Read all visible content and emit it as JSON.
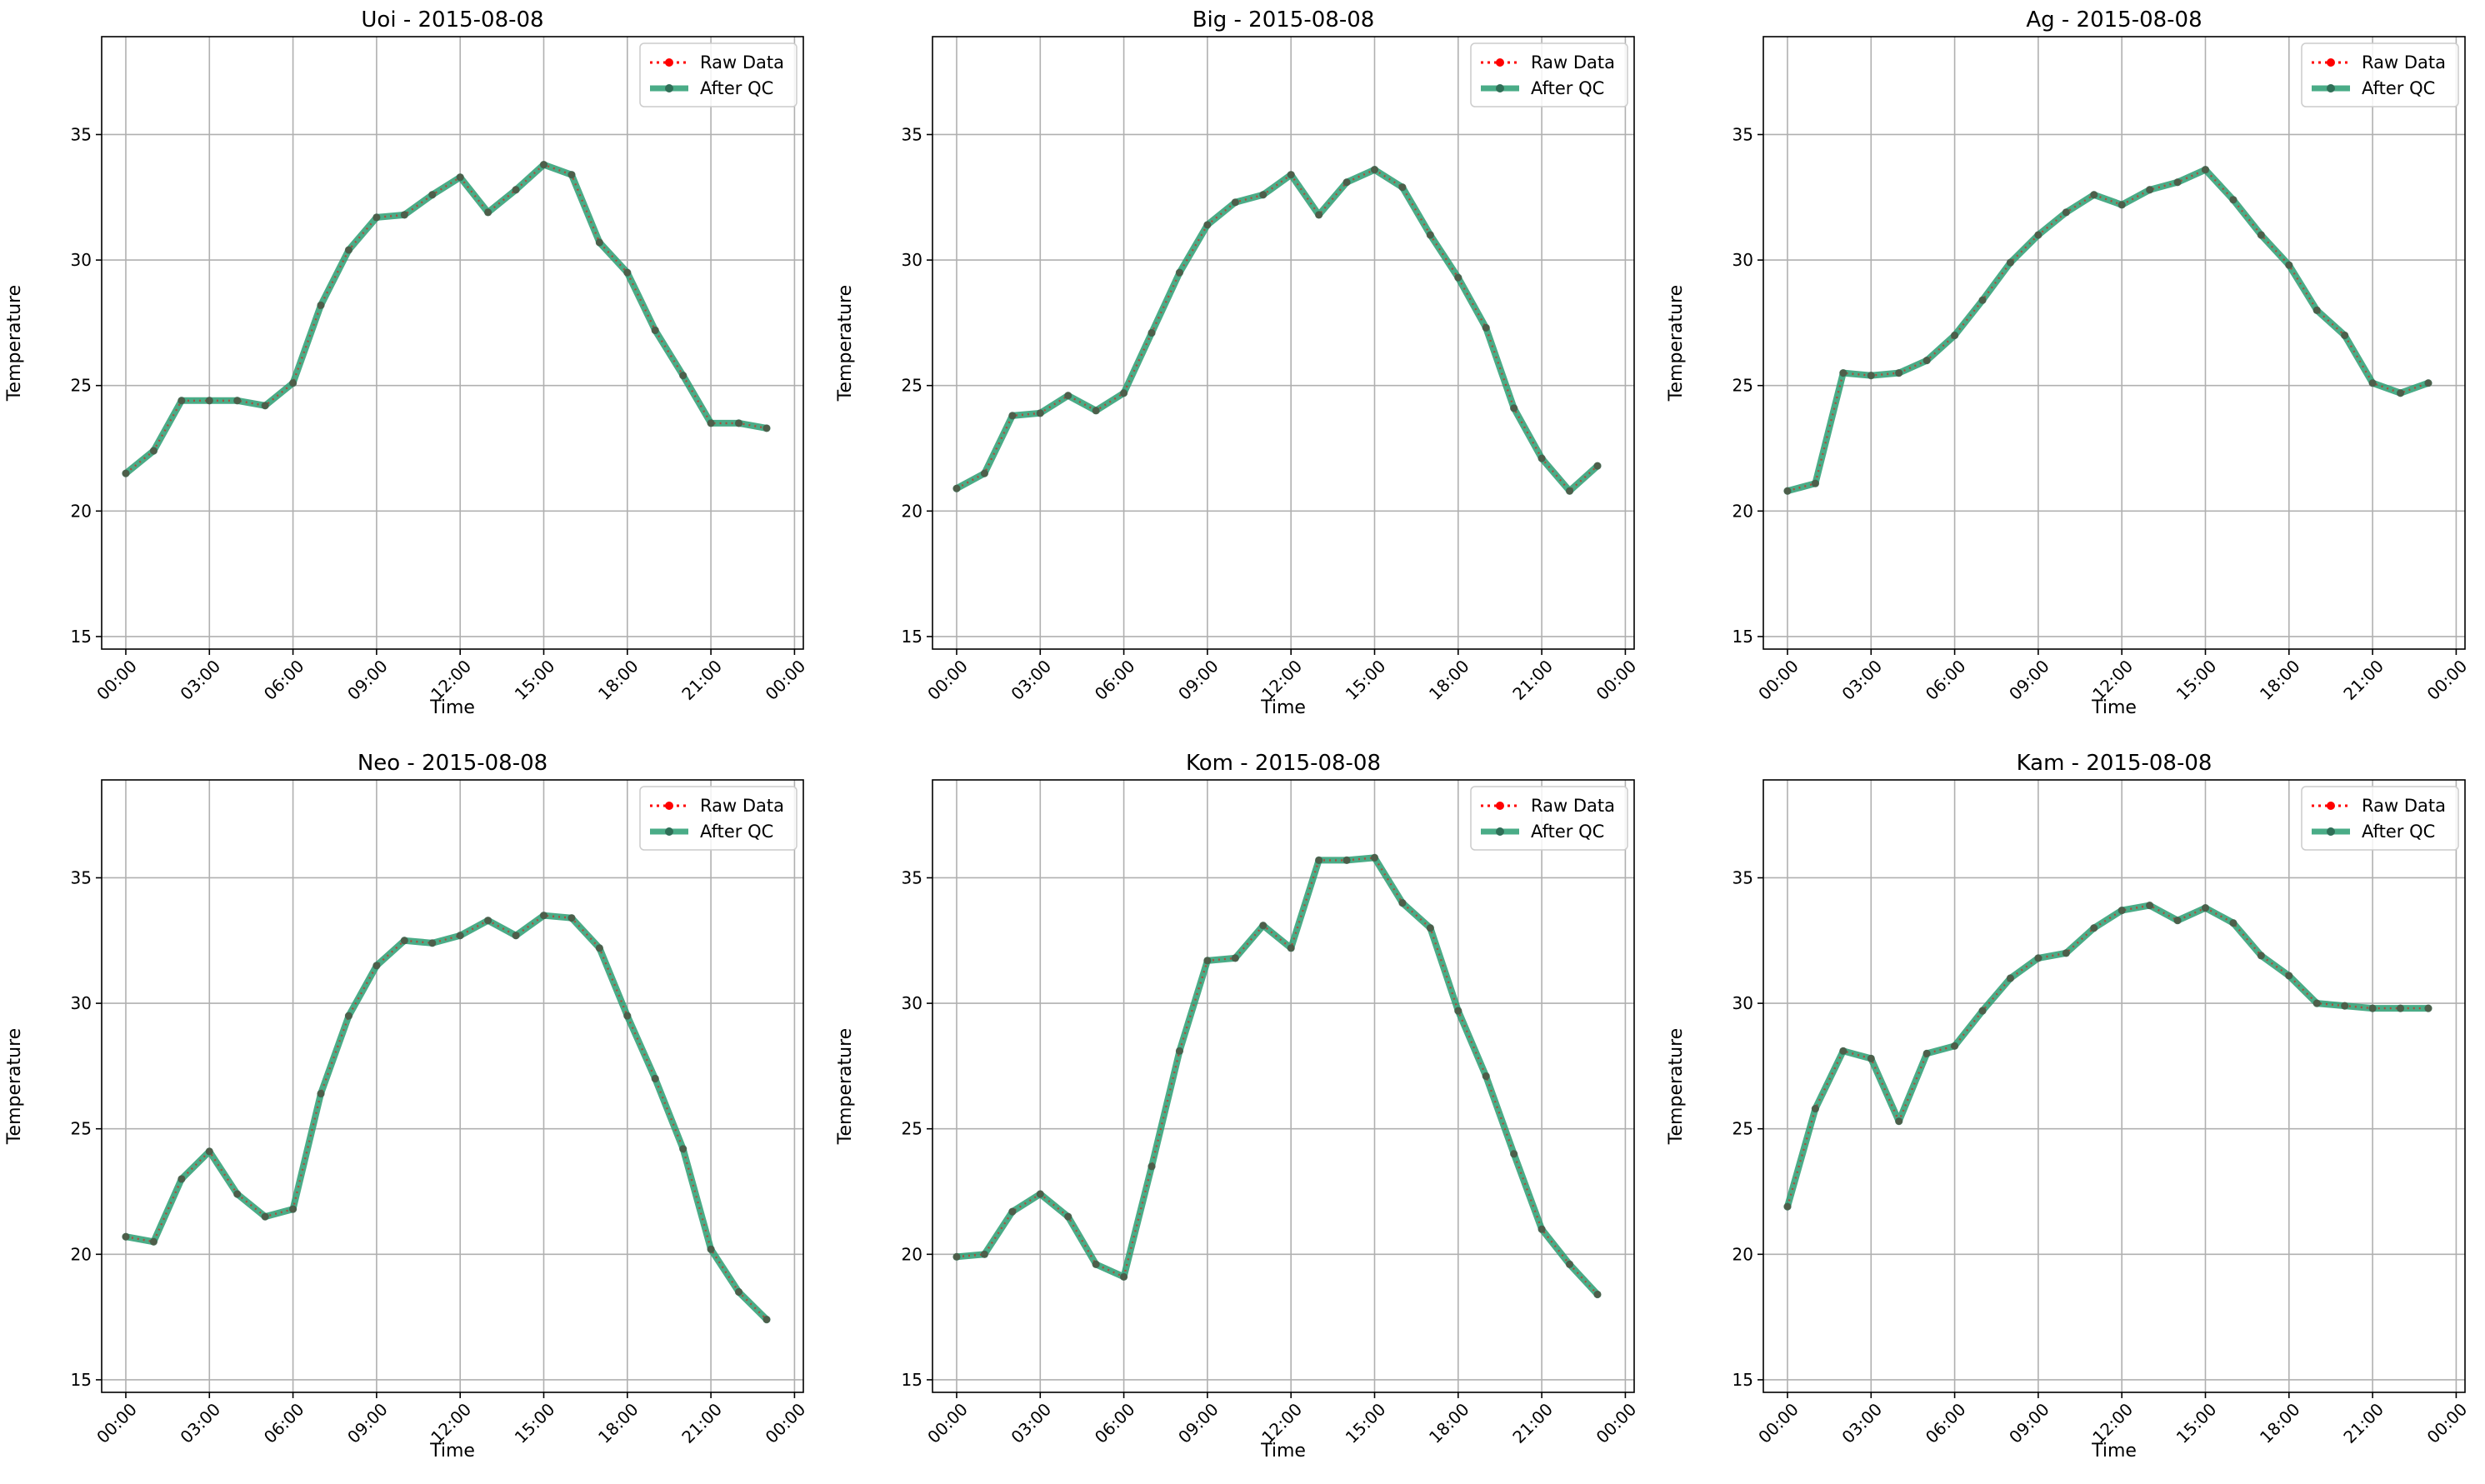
{
  "chart_data": [
    {
      "type": "line",
      "title": "Uoi - 2015-08-08",
      "xlabel": "Time",
      "ylabel": "Temperature",
      "ylim": [
        14.5,
        38.9
      ],
      "xlim": [
        "23:08",
        "00:19"
      ],
      "x_ticks": [
        "00:00",
        "03:00",
        "06:00",
        "09:00",
        "12:00",
        "15:00",
        "18:00",
        "21:00",
        "00:00"
      ],
      "y_ticks": [
        15,
        20,
        25,
        30,
        35
      ],
      "grid": true,
      "legend": "top-right",
      "x": [
        "00:00",
        "01:00",
        "02:00",
        "03:00",
        "04:00",
        "05:00",
        "06:00",
        "07:00",
        "08:00",
        "09:00",
        "10:00",
        "11:00",
        "12:00",
        "13:00",
        "14:00",
        "15:00",
        "16:00",
        "17:00",
        "18:00",
        "19:00",
        "20:00",
        "21:00",
        "22:00",
        "23:00"
      ],
      "series": [
        {
          "name": "Raw Data",
          "color": "#ff0000",
          "values": [
            21.5,
            22.4,
            24.4,
            24.4,
            24.4,
            24.2,
            25.1,
            28.2,
            30.4,
            31.7,
            31.8,
            32.6,
            33.3,
            31.9,
            32.8,
            33.8,
            33.4,
            30.7,
            29.5,
            27.2,
            25.4,
            23.5,
            23.5,
            23.3
          ]
        },
        {
          "name": "After QC",
          "color": "#2a9d72",
          "values": [
            21.5,
            22.4,
            24.4,
            24.4,
            24.4,
            24.2,
            25.1,
            28.2,
            30.4,
            31.7,
            31.8,
            32.6,
            33.3,
            31.9,
            32.8,
            33.8,
            33.4,
            30.7,
            29.5,
            27.2,
            25.4,
            23.5,
            23.5,
            23.3
          ]
        }
      ]
    },
    {
      "type": "line",
      "title": "Big - 2015-08-08",
      "xlabel": "Time",
      "ylabel": "Temperature",
      "ylim": [
        14.5,
        38.9
      ],
      "xlim": [
        "23:08",
        "00:19"
      ],
      "x_ticks": [
        "00:00",
        "03:00",
        "06:00",
        "09:00",
        "12:00",
        "15:00",
        "18:00",
        "21:00",
        "00:00"
      ],
      "y_ticks": [
        15,
        20,
        25,
        30,
        35
      ],
      "grid": true,
      "legend": "top-right",
      "x": [
        "00:00",
        "01:00",
        "02:00",
        "03:00",
        "04:00",
        "05:00",
        "06:00",
        "07:00",
        "08:00",
        "09:00",
        "10:00",
        "11:00",
        "12:00",
        "13:00",
        "14:00",
        "15:00",
        "16:00",
        "17:00",
        "18:00",
        "19:00",
        "20:00",
        "21:00",
        "22:00",
        "23:00"
      ],
      "series": [
        {
          "name": "Raw Data",
          "color": "#ff0000",
          "values": [
            20.9,
            21.5,
            23.8,
            23.9,
            24.6,
            24.0,
            24.7,
            27.1,
            29.5,
            31.4,
            32.3,
            32.6,
            33.4,
            31.8,
            33.1,
            33.6,
            32.9,
            31.0,
            29.3,
            27.3,
            24.1,
            22.1,
            20.8,
            21.8
          ]
        },
        {
          "name": "After QC",
          "color": "#2a9d72",
          "values": [
            20.9,
            21.5,
            23.8,
            23.9,
            24.6,
            24.0,
            24.7,
            27.1,
            29.5,
            31.4,
            32.3,
            32.6,
            33.4,
            31.8,
            33.1,
            33.6,
            32.9,
            31.0,
            29.3,
            27.3,
            24.1,
            22.1,
            20.8,
            21.8
          ]
        }
      ]
    },
    {
      "type": "line",
      "title": "Ag - 2015-08-08",
      "xlabel": "Time",
      "ylabel": "Temperature",
      "ylim": [
        14.5,
        38.9
      ],
      "xlim": [
        "23:08",
        "00:19"
      ],
      "x_ticks": [
        "00:00",
        "03:00",
        "06:00",
        "09:00",
        "12:00",
        "15:00",
        "18:00",
        "21:00",
        "00:00"
      ],
      "y_ticks": [
        15,
        20,
        25,
        30,
        35
      ],
      "grid": true,
      "legend": "top-right",
      "x": [
        "00:00",
        "01:00",
        "02:00",
        "03:00",
        "04:00",
        "05:00",
        "06:00",
        "07:00",
        "08:00",
        "09:00",
        "10:00",
        "11:00",
        "12:00",
        "13:00",
        "14:00",
        "15:00",
        "16:00",
        "17:00",
        "18:00",
        "19:00",
        "20:00",
        "21:00",
        "22:00",
        "23:00"
      ],
      "series": [
        {
          "name": "Raw Data",
          "color": "#ff0000",
          "values": [
            20.8,
            21.1,
            25.5,
            25.4,
            25.5,
            26.0,
            27.0,
            28.4,
            29.9,
            31.0,
            31.9,
            32.6,
            32.2,
            32.8,
            33.1,
            33.6,
            32.4,
            31.0,
            29.8,
            28.0,
            27.0,
            25.1,
            24.7,
            25.1
          ]
        },
        {
          "name": "After QC",
          "color": "#2a9d72",
          "values": [
            20.8,
            21.1,
            25.5,
            25.4,
            25.5,
            26.0,
            27.0,
            28.4,
            29.9,
            31.0,
            31.9,
            32.6,
            32.2,
            32.8,
            33.1,
            33.6,
            32.4,
            31.0,
            29.8,
            28.0,
            27.0,
            25.1,
            24.7,
            25.1
          ]
        }
      ]
    },
    {
      "type": "line",
      "title": "Neo - 2015-08-08",
      "xlabel": "Time",
      "ylabel": "Temperature",
      "ylim": [
        14.5,
        38.9
      ],
      "xlim": [
        "23:08",
        "00:19"
      ],
      "x_ticks": [
        "00:00",
        "03:00",
        "06:00",
        "09:00",
        "12:00",
        "15:00",
        "18:00",
        "21:00",
        "00:00"
      ],
      "y_ticks": [
        15,
        20,
        25,
        30,
        35
      ],
      "grid": true,
      "legend": "top-right",
      "x": [
        "00:00",
        "01:00",
        "02:00",
        "03:00",
        "04:00",
        "05:00",
        "06:00",
        "07:00",
        "08:00",
        "09:00",
        "10:00",
        "11:00",
        "12:00",
        "13:00",
        "14:00",
        "15:00",
        "16:00",
        "17:00",
        "18:00",
        "19:00",
        "20:00",
        "21:00",
        "22:00",
        "23:00"
      ],
      "series": [
        {
          "name": "Raw Data",
          "color": "#ff0000",
          "values": [
            20.7,
            20.5,
            23.0,
            24.1,
            22.4,
            21.5,
            21.8,
            26.4,
            29.5,
            31.5,
            32.5,
            32.4,
            32.7,
            33.3,
            32.7,
            33.5,
            33.4,
            32.2,
            29.5,
            27.0,
            24.2,
            20.2,
            18.5,
            17.4
          ]
        },
        {
          "name": "After QC",
          "color": "#2a9d72",
          "values": [
            20.7,
            20.5,
            23.0,
            24.1,
            22.4,
            21.5,
            21.8,
            26.4,
            29.5,
            31.5,
            32.5,
            32.4,
            32.7,
            33.3,
            32.7,
            33.5,
            33.4,
            32.2,
            29.5,
            27.0,
            24.2,
            20.2,
            18.5,
            17.4
          ]
        }
      ]
    },
    {
      "type": "line",
      "title": "Kom - 2015-08-08",
      "xlabel": "Time",
      "ylabel": "Temperature",
      "ylim": [
        14.5,
        38.9
      ],
      "xlim": [
        "23:08",
        "00:19"
      ],
      "x_ticks": [
        "00:00",
        "03:00",
        "06:00",
        "09:00",
        "12:00",
        "15:00",
        "18:00",
        "21:00",
        "00:00"
      ],
      "y_ticks": [
        15,
        20,
        25,
        30,
        35
      ],
      "grid": true,
      "legend": "top-right",
      "x": [
        "00:00",
        "01:00",
        "02:00",
        "03:00",
        "04:00",
        "05:00",
        "06:00",
        "07:00",
        "08:00",
        "09:00",
        "10:00",
        "11:00",
        "12:00",
        "13:00",
        "14:00",
        "15:00",
        "16:00",
        "17:00",
        "18:00",
        "19:00",
        "20:00",
        "21:00",
        "22:00",
        "23:00"
      ],
      "series": [
        {
          "name": "Raw Data",
          "color": "#ff0000",
          "values": [
            19.9,
            20.0,
            21.7,
            22.4,
            21.5,
            19.6,
            19.1,
            23.5,
            28.1,
            31.7,
            31.8,
            33.1,
            32.2,
            35.7,
            35.7,
            35.8,
            34.0,
            33.0,
            29.7,
            27.1,
            24.0,
            21.0,
            19.6,
            18.4
          ]
        },
        {
          "name": "After QC",
          "color": "#2a9d72",
          "values": [
            19.9,
            20.0,
            21.7,
            22.4,
            21.5,
            19.6,
            19.1,
            23.5,
            28.1,
            31.7,
            31.8,
            33.1,
            32.2,
            35.7,
            35.7,
            35.8,
            34.0,
            33.0,
            29.7,
            27.1,
            24.0,
            21.0,
            19.6,
            18.4
          ]
        }
      ]
    },
    {
      "type": "line",
      "title": "Kam - 2015-08-08",
      "xlabel": "Time",
      "ylabel": "Temperature",
      "ylim": [
        14.5,
        38.9
      ],
      "xlim": [
        "23:08",
        "00:19"
      ],
      "x_ticks": [
        "00:00",
        "03:00",
        "06:00",
        "09:00",
        "12:00",
        "15:00",
        "18:00",
        "21:00",
        "00:00"
      ],
      "y_ticks": [
        15,
        20,
        25,
        30,
        35
      ],
      "grid": true,
      "legend": "top-right",
      "x": [
        "00:00",
        "01:00",
        "02:00",
        "03:00",
        "04:00",
        "05:00",
        "06:00",
        "07:00",
        "08:00",
        "09:00",
        "10:00",
        "11:00",
        "12:00",
        "13:00",
        "14:00",
        "15:00",
        "16:00",
        "17:00",
        "18:00",
        "19:00",
        "20:00",
        "21:00",
        "22:00",
        "23:00"
      ],
      "series": [
        {
          "name": "Raw Data",
          "color": "#ff0000",
          "values": [
            21.9,
            25.8,
            28.1,
            27.8,
            25.3,
            28.0,
            28.3,
            29.7,
            31.0,
            31.8,
            32.0,
            33.0,
            33.7,
            33.9,
            33.3,
            33.8,
            33.2,
            31.9,
            31.1,
            30.0,
            29.9,
            29.8,
            29.8,
            29.8
          ]
        },
        {
          "name": "After QC",
          "color": "#2a9d72",
          "values": [
            21.9,
            25.8,
            28.1,
            27.8,
            25.3,
            28.0,
            28.3,
            29.7,
            31.0,
            31.8,
            32.0,
            33.0,
            33.7,
            33.9,
            33.3,
            33.8,
            33.2,
            31.9,
            31.1,
            30.0,
            29.9,
            29.8,
            29.8,
            29.8
          ]
        }
      ]
    }
  ]
}
